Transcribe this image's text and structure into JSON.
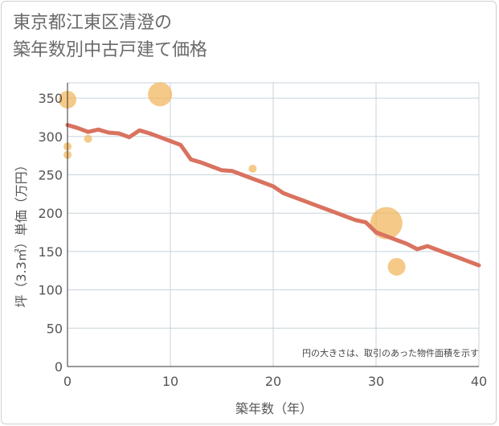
{
  "title_line1": "東京都江東区清澄の",
  "title_line2": "築年数別中古戸建て価格",
  "colors": {
    "line": "#d9725f",
    "bubble": "#f2b75f",
    "grid": "#c7d3dc",
    "axis": "#333333"
  },
  "chart_data": {
    "type": "scatter",
    "title": "東京都江東区清澄の築年数別中古戸建て価格",
    "xlabel": "築年数（年）",
    "ylabel": "坪（3.3㎡）単価（万円）",
    "xlim": [
      0,
      40
    ],
    "ylim": [
      0,
      370
    ],
    "xticks": [
      0,
      10,
      20,
      30,
      40
    ],
    "yticks": [
      0,
      50,
      100,
      150,
      200,
      250,
      300,
      350
    ],
    "grid": true,
    "annotation": "円の大きさは、取引のあった物件面積を示す",
    "bubbles": [
      {
        "x": 0,
        "y": 348,
        "size": "medium"
      },
      {
        "x": 0,
        "y": 287,
        "size": "small"
      },
      {
        "x": 0,
        "y": 276,
        "size": "small"
      },
      {
        "x": 2,
        "y": 297,
        "size": "small"
      },
      {
        "x": 9,
        "y": 355,
        "size": "large"
      },
      {
        "x": 18,
        "y": 258,
        "size": "small"
      },
      {
        "x": 31,
        "y": 187,
        "size": "xlarge"
      },
      {
        "x": 32,
        "y": 130,
        "size": "medium"
      }
    ],
    "trend_line": {
      "x": [
        0,
        1,
        2,
        3,
        4,
        5,
        6,
        7,
        8,
        9,
        10,
        11,
        12,
        13,
        14,
        15,
        16,
        17,
        18,
        19,
        20,
        21,
        22,
        23,
        24,
        25,
        26,
        27,
        28,
        29,
        30,
        31,
        32,
        33,
        34,
        35,
        36,
        37,
        38,
        39,
        40
      ],
      "y": [
        315,
        311,
        306,
        309,
        305,
        304,
        299,
        308,
        304,
        299,
        294,
        289,
        270,
        266,
        261,
        256,
        255,
        250,
        245,
        240,
        235,
        226,
        221,
        216,
        211,
        206,
        201,
        196,
        191,
        188,
        175,
        170,
        165,
        160,
        153,
        157,
        152,
        147,
        142,
        137,
        132
      ]
    }
  }
}
